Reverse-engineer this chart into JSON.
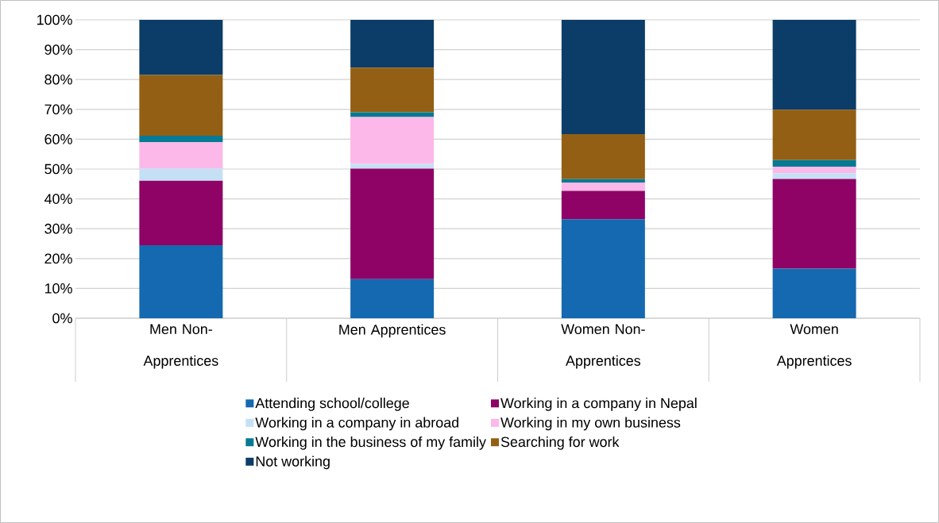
{
  "chart_data": {
    "type": "bar",
    "stacked": true,
    "categories": [
      "Men Non-Apprentices",
      "Men Apprentices",
      "Women Non-Apprentices",
      "Women Apprentices"
    ],
    "series": [
      {
        "name": "Attending school/college",
        "color": "#1569b0",
        "values": [
          24.5,
          13.1,
          33.2,
          16.6
        ]
      },
      {
        "name": "Working in a company in Nepal",
        "color": "#8e0365",
        "values": [
          21.6,
          37.0,
          9.5,
          30.1
        ]
      },
      {
        "name": "Working in a company in abroad",
        "color": "#c5e0f5",
        "values": [
          4.0,
          1.6,
          0,
          1.9
        ]
      },
      {
        "name": "Working in my own business",
        "color": "#fbb8e8",
        "values": [
          8.9,
          15.7,
          2.8,
          2.2
        ]
      },
      {
        "name": "Working in the business of my family",
        "color": "#067a93",
        "values": [
          2.2,
          1.6,
          1.1,
          2.2
        ]
      },
      {
        "name": "Searching for work",
        "color": "#925f14",
        "values": [
          20.3,
          15.0,
          15.1,
          16.9
        ]
      },
      {
        "name": "Not working",
        "color": "#0c3d68",
        "values": [
          18.5,
          16.0,
          38.3,
          30.1
        ]
      }
    ],
    "ylim": [
      0,
      100
    ],
    "yticks": [
      {
        "value": 0,
        "label": "0%"
      },
      {
        "value": 10,
        "label": "10%"
      },
      {
        "value": 20,
        "label": "20%"
      },
      {
        "value": 30,
        "label": "30%"
      },
      {
        "value": 40,
        "label": "40%"
      },
      {
        "value": 50,
        "label": "50%"
      },
      {
        "value": 60,
        "label": "60%"
      },
      {
        "value": 70,
        "label": "70%"
      },
      {
        "value": 80,
        "label": "80%"
      },
      {
        "value": 90,
        "label": "90%"
      },
      {
        "value": 100,
        "label": "100%"
      }
    ],
    "grid": "y",
    "legend": "bottom"
  }
}
